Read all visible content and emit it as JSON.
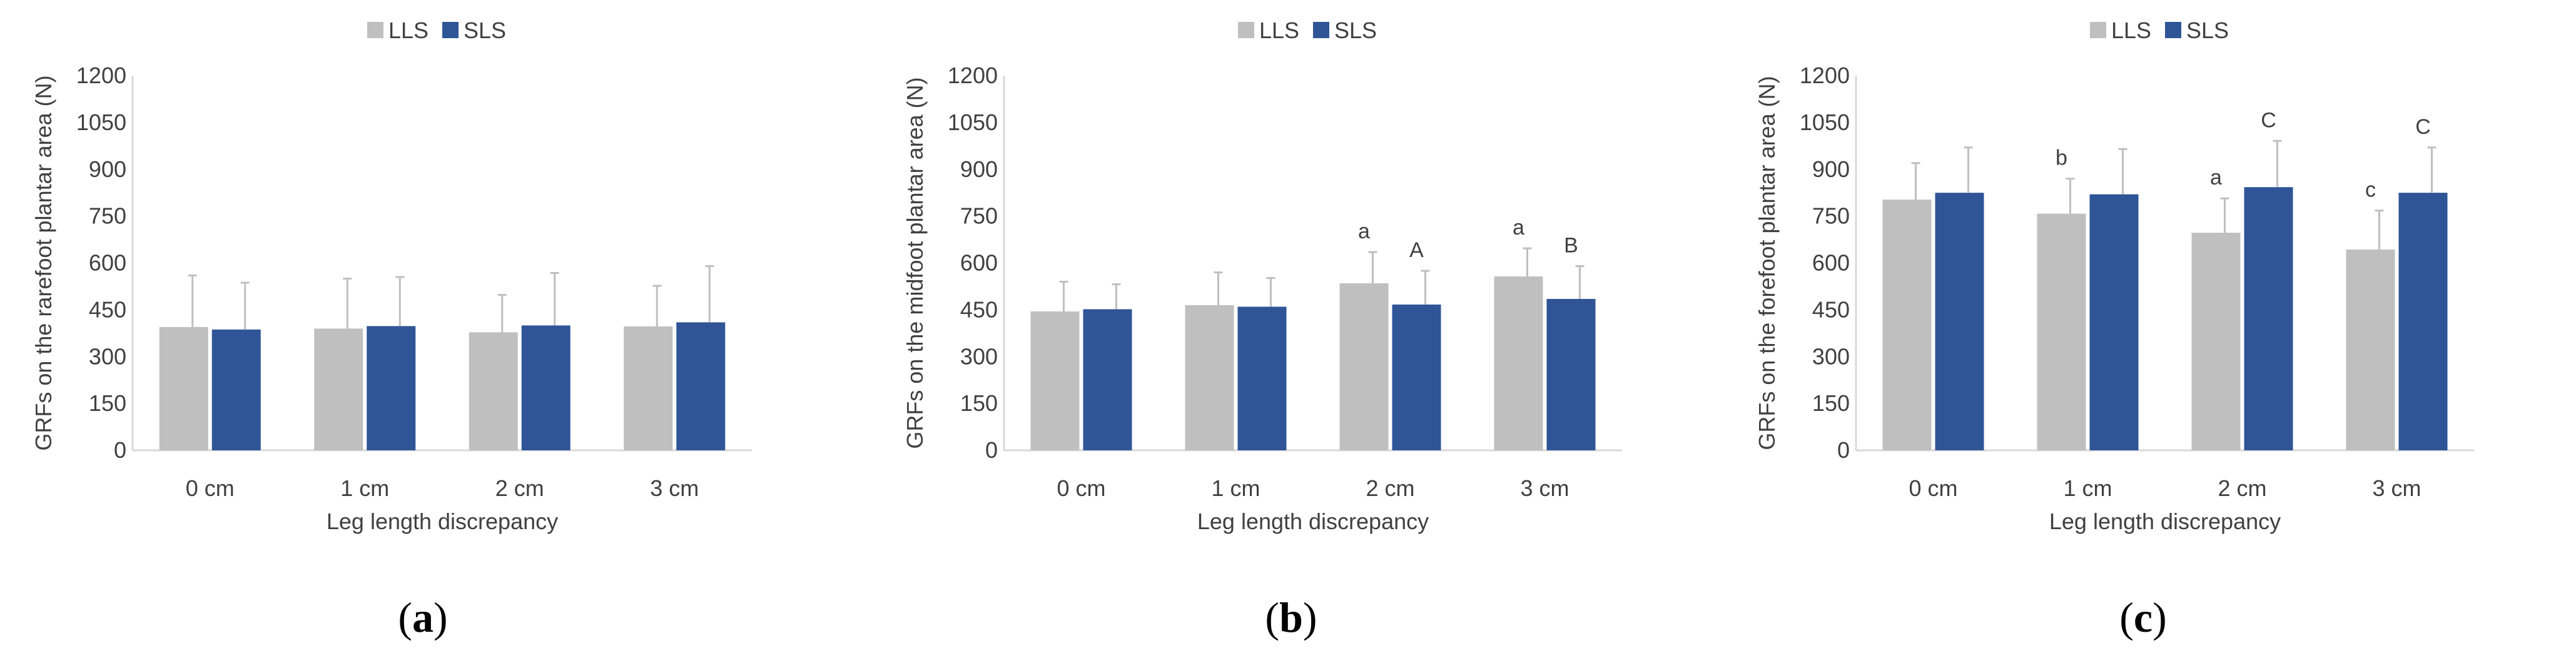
{
  "chart_data": [
    {
      "type": "bar",
      "caption": "a",
      "categories": [
        "0 cm",
        "1 cm",
        "2 cm",
        "3 cm"
      ],
      "xlabel": "Leg length discrepancy",
      "ylabel": "GRFs on the rarefoot plantar area (N)",
      "ylim": [
        0,
        1200
      ],
      "yticks": [
        0,
        150,
        300,
        450,
        600,
        750,
        900,
        1050,
        1200
      ],
      "grid": false,
      "legend": "top",
      "series": [
        {
          "name": "LLS",
          "color": "#bfbfbf",
          "values": [
            395,
            390,
            378,
            397
          ],
          "errors": [
            165,
            160,
            120,
            130
          ],
          "labels": [
            "",
            "",
            "",
            ""
          ]
        },
        {
          "name": "SLS",
          "color": "#2f5597",
          "values": [
            387,
            398,
            400,
            410
          ],
          "errors": [
            150,
            157,
            168,
            180
          ],
          "labels": [
            "",
            "",
            "",
            ""
          ]
        }
      ]
    },
    {
      "type": "bar",
      "caption": "b",
      "categories": [
        "0 cm",
        "1 cm",
        "2 cm",
        "3 cm"
      ],
      "xlabel": "Leg length discrepancy",
      "ylabel": "GRFs on the midfoot plantar area (N)",
      "ylim": [
        0,
        1200
      ],
      "yticks": [
        0,
        150,
        300,
        450,
        600,
        750,
        900,
        1050,
        1200
      ],
      "grid": false,
      "legend": "top",
      "series": [
        {
          "name": "LLS",
          "color": "#bfbfbf",
          "values": [
            445,
            465,
            535,
            557
          ],
          "errors": [
            95,
            105,
            100,
            90
          ],
          "labels": [
            "",
            "",
            "a",
            "a"
          ]
        },
        {
          "name": "SLS",
          "color": "#2f5597",
          "values": [
            452,
            460,
            467,
            485
          ],
          "errors": [
            80,
            92,
            108,
            105
          ],
          "labels": [
            "",
            "",
            "A",
            "B"
          ]
        }
      ]
    },
    {
      "type": "bar",
      "caption": "c",
      "categories": [
        "0 cm",
        "1 cm",
        "2 cm",
        "3 cm"
      ],
      "xlabel": "Leg length discrepancy",
      "ylabel": "GRFs on the forefoot plantar area (N)",
      "ylim": [
        0,
        1200
      ],
      "yticks": [
        0,
        150,
        300,
        450,
        600,
        750,
        900,
        1050,
        1200
      ],
      "grid": false,
      "legend": "top",
      "series": [
        {
          "name": "LLS",
          "color": "#bfbfbf",
          "values": [
            803,
            758,
            697,
            643
          ],
          "errors": [
            117,
            112,
            110,
            125
          ],
          "labels": [
            "",
            "b",
            "a",
            "c"
          ]
        },
        {
          "name": "SLS",
          "color": "#2f5597",
          "values": [
            825,
            820,
            843,
            825
          ],
          "errors": [
            145,
            145,
            148,
            145
          ],
          "labels": [
            "",
            "",
            "C",
            "C"
          ]
        }
      ]
    }
  ]
}
